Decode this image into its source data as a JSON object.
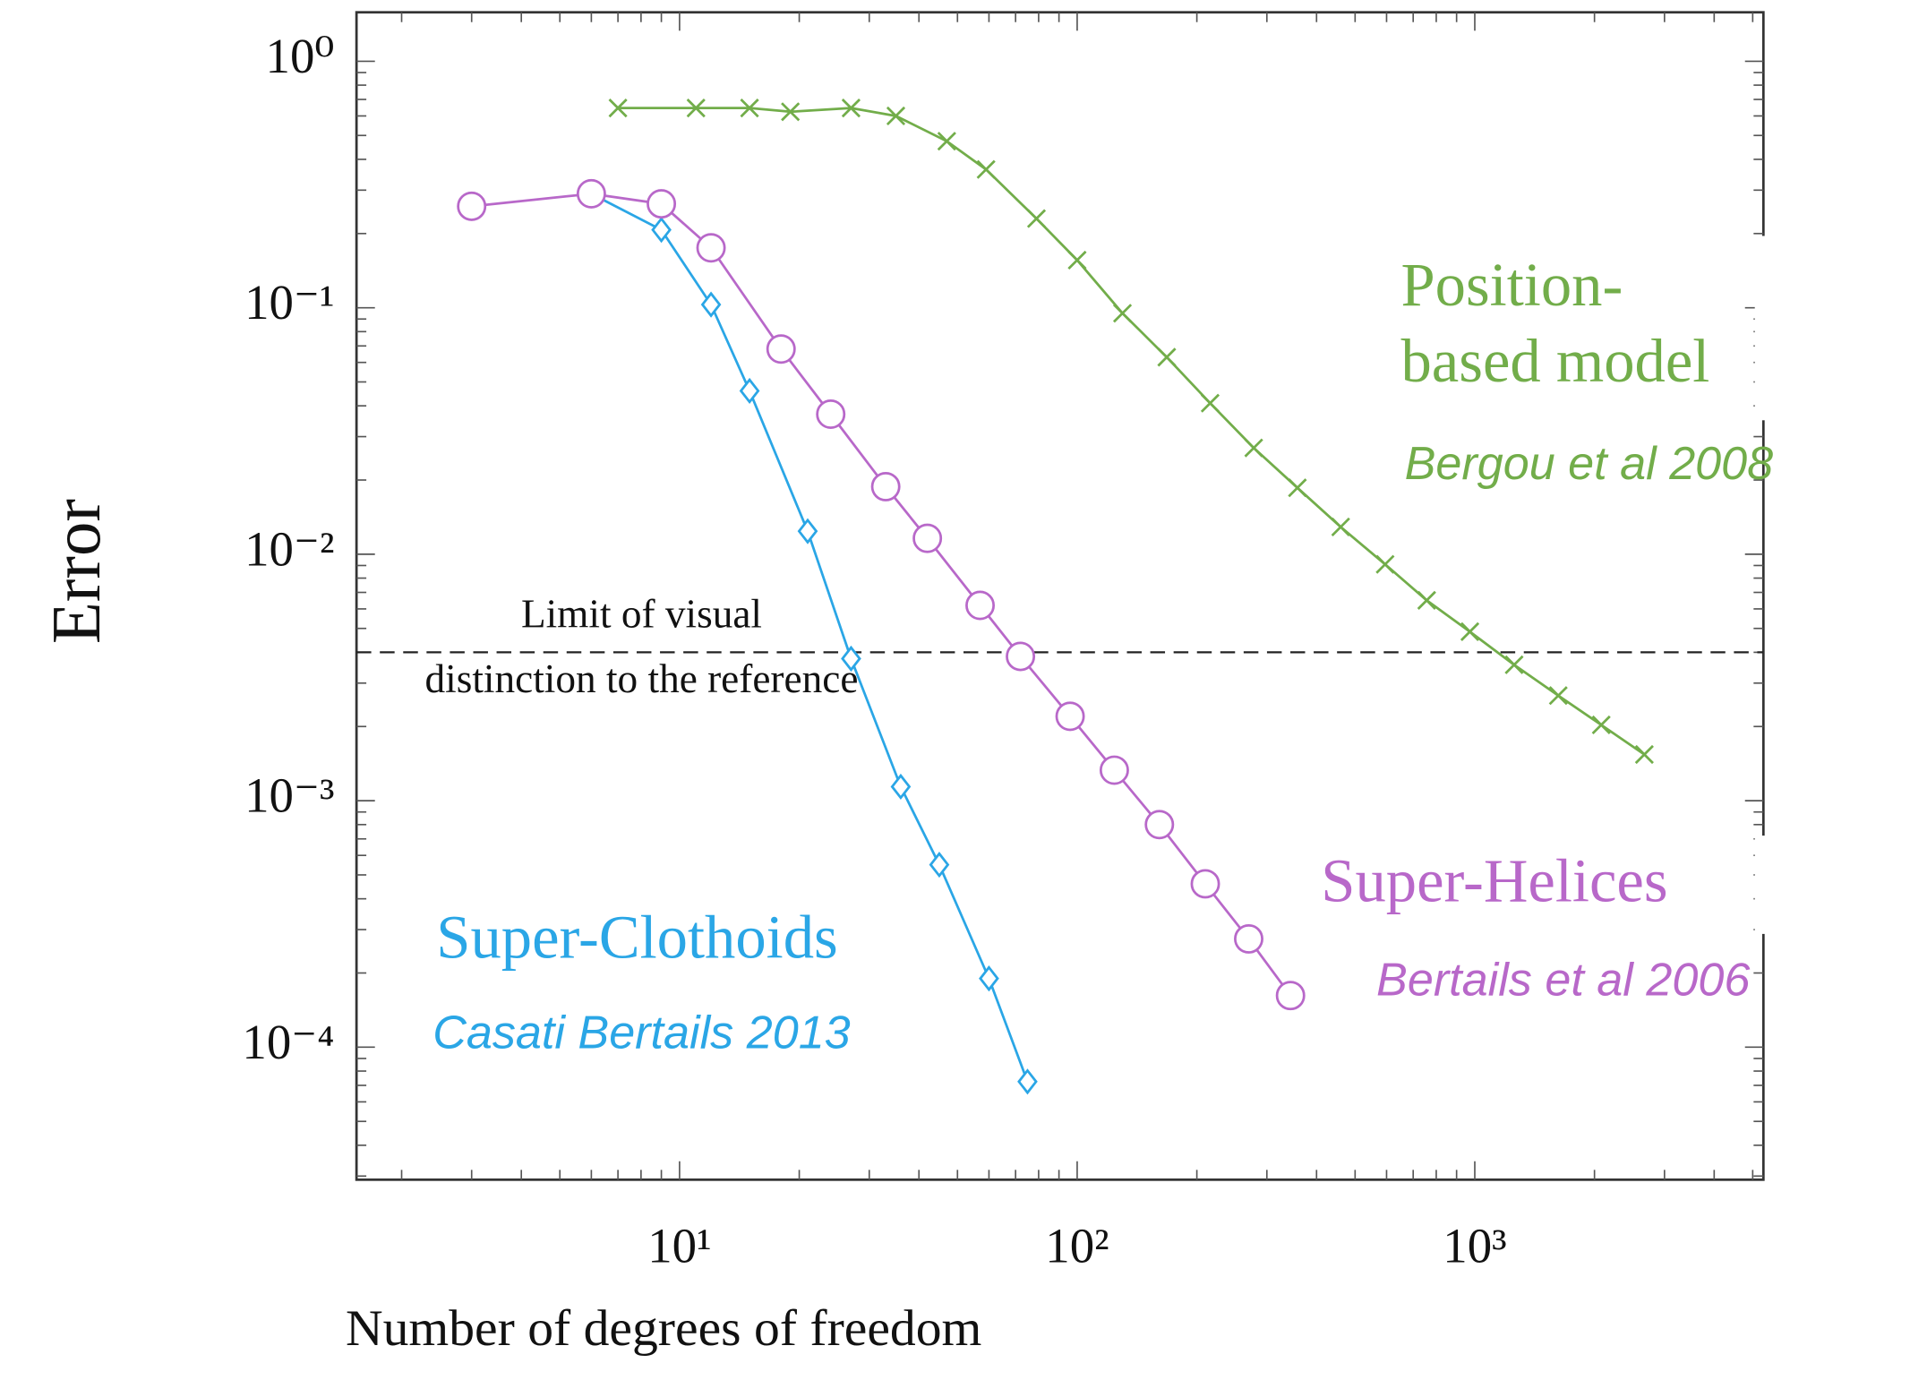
{
  "chart_data": {
    "type": "line",
    "x_label": "Number of degrees of freedom",
    "y_label": "Error",
    "xscale": "log",
    "yscale": "log",
    "xlim": [
      1.54,
      5320
    ],
    "ylim": [
      2.9e-05,
      1.58
    ],
    "xticks": [
      {
        "value": 10,
        "label": "10¹"
      },
      {
        "value": 100,
        "label": "10²"
      },
      {
        "value": 1000,
        "label": "10³"
      }
    ],
    "yticks": [
      {
        "value": 1,
        "label": "10⁰"
      },
      {
        "value": 0.1,
        "label": "10⁻¹"
      },
      {
        "value": 0.01,
        "label": "10⁻²"
      },
      {
        "value": 0.001,
        "label": "10⁻³"
      },
      {
        "value": 0.0001,
        "label": "10⁻⁴"
      }
    ],
    "reference_line": {
      "value": 0.004,
      "text": [
        "Limit of visual",
        "distinction to the reference"
      ]
    },
    "series": [
      {
        "name": [
          "Super-Clothoids"
        ],
        "citation": "Casati Bertails 2013",
        "color": "#2aa6e6",
        "marker": "diamond",
        "x": [
          6,
          9,
          12,
          15,
          21,
          27,
          36,
          45,
          60,
          75
        ],
        "values": [
          0.29,
          0.207,
          0.103,
          0.046,
          0.0124,
          0.00377,
          0.00114,
          0.00055,
          0.00019,
          7.25e-05
        ]
      },
      {
        "name": [
          "Super-Helices"
        ],
        "citation": "Bertails et al 2006",
        "color": "#b868c9",
        "marker": "circle",
        "x": [
          3,
          6,
          9,
          12,
          18,
          24,
          33,
          42,
          57,
          72,
          96,
          124,
          161,
          210,
          270,
          344
        ],
        "values": [
          0.258,
          0.29,
          0.264,
          0.175,
          0.068,
          0.037,
          0.0188,
          0.0116,
          0.0062,
          0.00385,
          0.0022,
          0.00133,
          0.0008,
          0.00046,
          0.000275,
          0.000162
        ]
      },
      {
        "name": [
          "Position-",
          "based model"
        ],
        "citation": "Bergou et al 2008",
        "color": "#72ad4a",
        "marker": "x",
        "x": [
          7,
          11,
          15,
          19,
          27,
          35,
          47,
          59,
          79,
          100,
          130,
          168,
          216,
          278,
          358,
          460,
          595,
          757,
          972,
          1256,
          1622,
          2080,
          2670
        ],
        "values": [
          0.646,
          0.646,
          0.646,
          0.624,
          0.646,
          0.6,
          0.474,
          0.364,
          0.23,
          0.156,
          0.095,
          0.063,
          0.041,
          0.027,
          0.0186,
          0.0129,
          0.0091,
          0.0065,
          0.00485,
          0.00356,
          0.00267,
          0.00203,
          0.00154
        ]
      }
    ]
  }
}
